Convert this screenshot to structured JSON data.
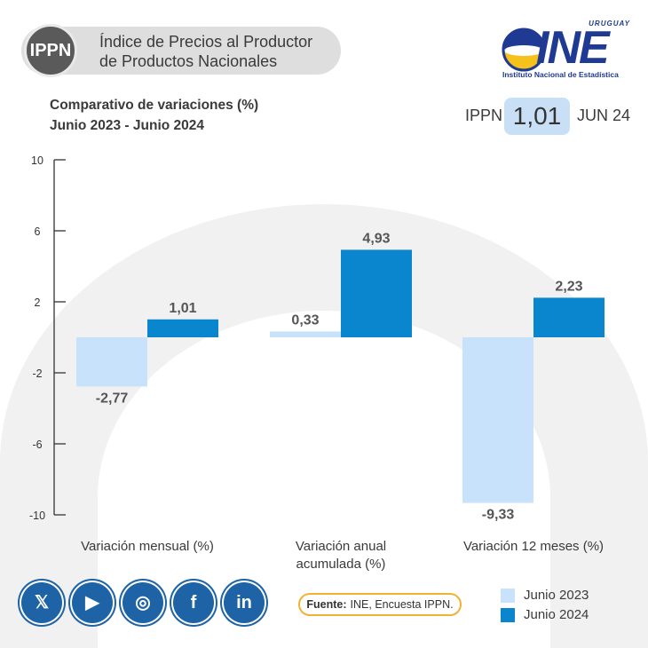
{
  "header": {
    "badge": "IPPN",
    "title_line1": "Índice de Precios al Productor",
    "title_line2": "de Productos Nacionales"
  },
  "logo": {
    "top": "URUGUAY",
    "name": "INE",
    "subtitle": "Instituto Nacional de Estadística"
  },
  "kpi": {
    "label": "IPPN",
    "value": "1,01",
    "period": "JUN 24"
  },
  "source": {
    "label": "Fuente:",
    "text": "INE, Encuesta IPPN."
  },
  "social": [
    {
      "icon": "x-icon",
      "glyph": "𝕏"
    },
    {
      "icon": "youtube-icon",
      "glyph": "▶"
    },
    {
      "icon": "instagram-icon",
      "glyph": "◎"
    },
    {
      "icon": "facebook-icon",
      "glyph": "f"
    },
    {
      "icon": "linkedin-icon",
      "glyph": "in"
    }
  ],
  "colors": {
    "light": "#c9e2fb",
    "dark": "#0a86cf",
    "axis": "#333333",
    "background_arc": "#f1f1f1"
  },
  "chart_data": {
    "type": "bar",
    "title": "Comparativo de variaciones (%)",
    "subtitle": "Junio 2023 - Junio 2024",
    "categories": [
      "Variación mensual (%)",
      "Variación anual acumulada (%)",
      "Variación 12 meses (%)"
    ],
    "category_lines": [
      [
        "Variación mensual (%)"
      ],
      [
        "Variación anual",
        "acumulada (%)"
      ],
      [
        "Variación 12 meses (%)"
      ]
    ],
    "series": [
      {
        "name": "Junio 2023",
        "values": [
          -2.77,
          0.33,
          -9.33
        ],
        "labels": [
          "-2,77",
          "0,33",
          "-9,33"
        ]
      },
      {
        "name": "Junio 2024",
        "values": [
          1.01,
          4.93,
          2.23
        ],
        "labels": [
          "1,01",
          "4,93",
          "2,23"
        ]
      }
    ],
    "yticks": [
      10,
      6,
      2,
      -2,
      -6,
      -10
    ],
    "ylim": [
      -10,
      10
    ],
    "legend": "bottom-right",
    "grid": false
  }
}
